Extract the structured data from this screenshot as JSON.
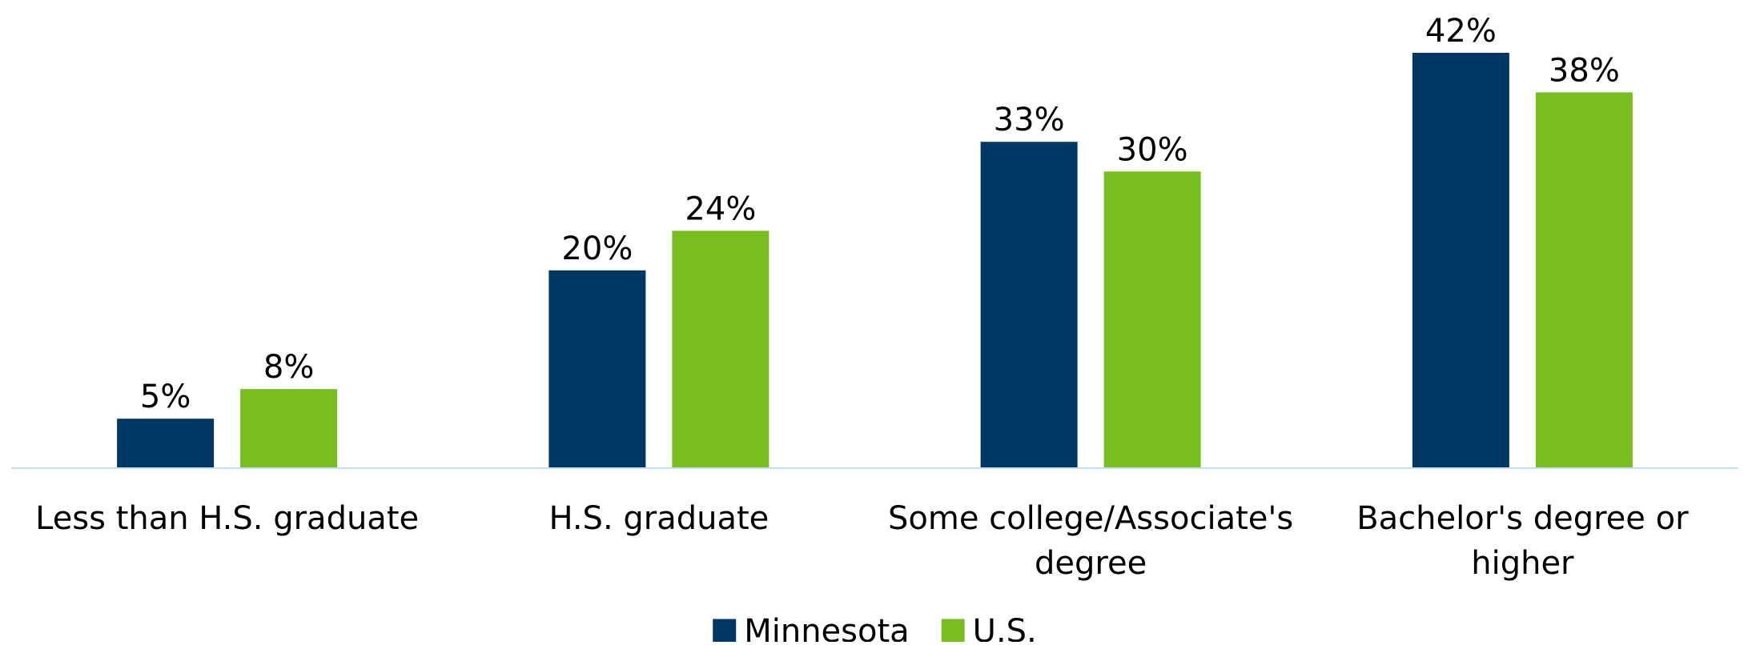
{
  "chart_data": {
    "type": "bar",
    "categories": [
      "Less than H.S. graduate",
      "H.S. graduate",
      "Some college/Associate's degree",
      "Bachelor's degree or higher"
    ],
    "series": [
      {
        "name": "Minnesota",
        "color": "#003865",
        "values": [
          5,
          20,
          33,
          42
        ],
        "value_labels": [
          "5%",
          "20%",
          "33%",
          "42%"
        ]
      },
      {
        "name": "U.S.",
        "color": "#78be21",
        "values": [
          8,
          24,
          30,
          38
        ],
        "value_labels": [
          "8%",
          "24%",
          "30%",
          "38%"
        ]
      }
    ],
    "ylim": [
      0,
      42
    ],
    "legend": "bottom"
  }
}
